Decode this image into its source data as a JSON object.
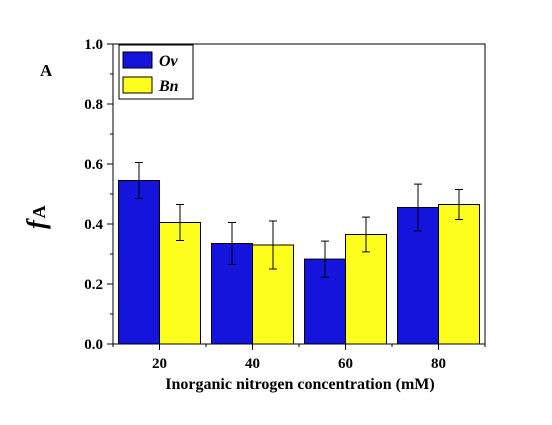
{
  "chart_data": {
    "type": "bar",
    "panel_label": "A",
    "categories": [
      "20",
      "40",
      "60",
      "80"
    ],
    "series": [
      {
        "name": "Ov",
        "color": "#1414dc",
        "values": [
          0.545,
          0.335,
          0.283,
          0.455
        ],
        "errors": [
          0.06,
          0.07,
          0.06,
          0.078
        ]
      },
      {
        "name": "Bn",
        "color": "#ffff1e",
        "values": [
          0.405,
          0.33,
          0.365,
          0.465
        ],
        "errors": [
          0.06,
          0.08,
          0.058,
          0.05
        ]
      }
    ],
    "xlabel": "Inorganic nitrogen concentration (mM)",
    "ylabel_main": "f",
    "ylabel_sub": "A",
    "ylim": [
      0,
      1.0
    ],
    "yticks": [
      "0.0",
      "0.2",
      "0.4",
      "0.6",
      "0.8",
      "1.0"
    ],
    "legend_position": "top-left",
    "grid": false
  }
}
